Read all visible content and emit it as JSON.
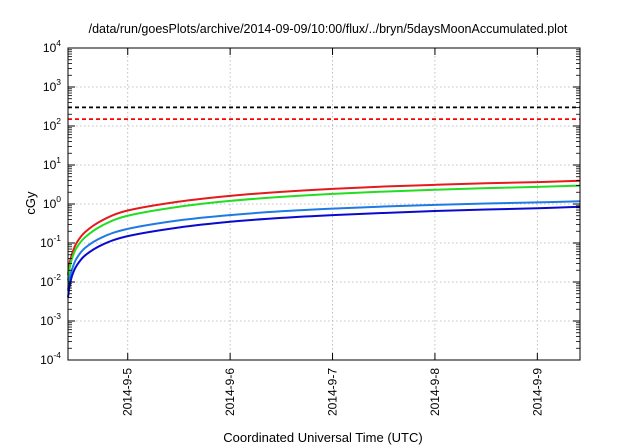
{
  "chart_data": {
    "type": "line",
    "title": "/data/run/goesPlots/archive/2014-09-09/10:00/flux/../bryn/5daysMoonAccumulated.plot",
    "xlabel": "Coordinated Universal Time (UTC)",
    "ylabel": "cGy",
    "x_scale": "time",
    "y_scale": "log",
    "xlim": [
      "2014-09-04T10:00",
      "2014-09-09T10:00"
    ],
    "ylim": [
      0.0001,
      10000
    ],
    "x_ticks": [
      {
        "value": "2014-09-05T00:00",
        "label": "2014-9-5"
      },
      {
        "value": "2014-09-06T00:00",
        "label": "2014-9-6"
      },
      {
        "value": "2014-09-07T00:00",
        "label": "2014-9-7"
      },
      {
        "value": "2014-09-08T00:00",
        "label": "2014-9-8"
      },
      {
        "value": "2014-09-09T00:00",
        "label": "2014-9-9"
      }
    ],
    "y_ticks": [
      {
        "value": 0.0001,
        "base": "10",
        "exp": "-4"
      },
      {
        "value": 0.001,
        "base": "10",
        "exp": "-3"
      },
      {
        "value": 0.01,
        "base": "10",
        "exp": "-2"
      },
      {
        "value": 0.1,
        "base": "10",
        "exp": "-1"
      },
      {
        "value": 1,
        "base": "10",
        "exp": "0"
      },
      {
        "value": 10,
        "base": "10",
        "exp": "1"
      },
      {
        "value": 100,
        "base": "10",
        "exp": "2"
      },
      {
        "value": 1000,
        "base": "10",
        "exp": "3"
      },
      {
        "value": 10000,
        "base": "10",
        "exp": "4"
      }
    ],
    "grid": true,
    "legend": "none",
    "reference_lines": [
      {
        "y": 300,
        "color": "#000000",
        "style": "dashed"
      },
      {
        "y": 150,
        "color": "#ff0000",
        "style": "dashed"
      }
    ],
    "series": [
      {
        "color": "#e41a1c",
        "x": [
          "2014-09-04T10:00",
          "2014-09-04T10:15",
          "2014-09-04T10:30",
          "2014-09-04T11:00",
          "2014-09-04T12:00",
          "2014-09-04T14:00",
          "2014-09-04T18:00",
          "2014-09-05T00:00",
          "2014-09-05T12:00",
          "2014-09-06T00:00",
          "2014-09-06T12:00",
          "2014-09-07T00:00",
          "2014-09-07T12:00",
          "2014-09-08T00:00",
          "2014-09-08T12:00",
          "2014-09-09T00:00",
          "2014-09-09T10:00"
        ],
        "y": [
          0.015,
          0.025,
          0.035,
          0.055,
          0.1,
          0.19,
          0.38,
          0.68,
          1.15,
          1.62,
          2.05,
          2.45,
          2.8,
          3.1,
          3.4,
          3.65,
          3.95
        ]
      },
      {
        "color": "#22dd22",
        "x": [
          "2014-09-04T10:00",
          "2014-09-04T10:15",
          "2014-09-04T10:30",
          "2014-09-04T11:00",
          "2014-09-04T12:00",
          "2014-09-04T14:00",
          "2014-09-04T18:00",
          "2014-09-05T00:00",
          "2014-09-05T12:00",
          "2014-09-06T00:00",
          "2014-09-06T12:00",
          "2014-09-07T00:00",
          "2014-09-07T12:00",
          "2014-09-08T00:00",
          "2014-09-08T12:00",
          "2014-09-09T00:00",
          "2014-09-09T10:00"
        ],
        "y": [
          0.011,
          0.018,
          0.026,
          0.042,
          0.075,
          0.14,
          0.28,
          0.5,
          0.85,
          1.2,
          1.52,
          1.82,
          2.08,
          2.32,
          2.55,
          2.75,
          2.95
        ]
      },
      {
        "color": "#1e7be6",
        "x": [
          "2014-09-04T10:00",
          "2014-09-04T10:15",
          "2014-09-04T10:30",
          "2014-09-04T11:00",
          "2014-09-04T12:00",
          "2014-09-04T14:00",
          "2014-09-04T18:00",
          "2014-09-05T00:00",
          "2014-09-05T12:00",
          "2014-09-06T00:00",
          "2014-09-06T12:00",
          "2014-09-07T00:00",
          "2014-09-07T12:00",
          "2014-09-08T00:00",
          "2014-09-08T12:00",
          "2014-09-09T00:00",
          "2014-09-09T10:00"
        ],
        "y": [
          0.006,
          0.01,
          0.014,
          0.022,
          0.04,
          0.075,
          0.14,
          0.23,
          0.38,
          0.52,
          0.65,
          0.76,
          0.86,
          0.95,
          1.03,
          1.1,
          1.18
        ]
      },
      {
        "color": "#0a0acf",
        "x": [
          "2014-09-04T10:00",
          "2014-09-04T10:15",
          "2014-09-04T10:30",
          "2014-09-04T11:00",
          "2014-09-04T12:00",
          "2014-09-04T14:00",
          "2014-09-04T18:00",
          "2014-09-05T00:00",
          "2014-09-05T12:00",
          "2014-09-06T00:00",
          "2014-09-06T12:00",
          "2014-09-07T00:00",
          "2014-09-07T12:00",
          "2014-09-08T00:00",
          "2014-09-08T12:00",
          "2014-09-09T00:00",
          "2014-09-09T10:00"
        ],
        "y": [
          0.004,
          0.0065,
          0.009,
          0.015,
          0.026,
          0.048,
          0.09,
          0.15,
          0.25,
          0.35,
          0.44,
          0.52,
          0.59,
          0.66,
          0.72,
          0.78,
          0.85
        ]
      }
    ]
  }
}
